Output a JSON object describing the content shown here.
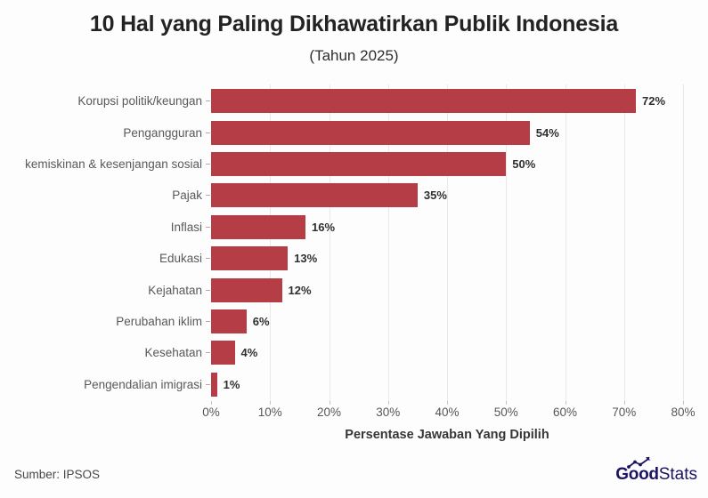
{
  "header": {
    "title": "10 Hal yang Paling Dikhawatirkan Publik Indonesia",
    "subtitle": "(Tahun 2025)"
  },
  "chart_data": {
    "type": "bar",
    "orientation": "horizontal",
    "title": "10 Hal yang Paling Dikhawatirkan Publik Indonesia",
    "subtitle": "(Tahun 2025)",
    "categories": [
      "Korupsi politik/keungan",
      "Pengangguran",
      "kemiskinan & kesenjangan sosial",
      "Pajak",
      "Inflasi",
      "Edukasi",
      "Kejahatan",
      "Perubahan iklim",
      "Kesehatan",
      "Pengendalian imigrasi"
    ],
    "values": [
      72,
      54,
      50,
      35,
      16,
      13,
      12,
      6,
      4,
      1
    ],
    "value_labels": [
      "72%",
      "54%",
      "50%",
      "35%",
      "16%",
      "13%",
      "12%",
      "6%",
      "4%",
      "1%"
    ],
    "xlabel": "Persentase Jawaban Yang Dipilih",
    "ylabel": "",
    "xlim": [
      0,
      80
    ],
    "x_ticks": [
      "0%",
      "10%",
      "20%",
      "30%",
      "40%",
      "50%",
      "60%",
      "70%",
      "80%"
    ],
    "grid": "vertical",
    "legend": "none",
    "bar_color": "#b43d46",
    "gridline_color": "#e9e9e9"
  },
  "footer": {
    "source": "Sumber: IPSOS",
    "logo": {
      "good": "Good",
      "stats": "Stats",
      "color": "#1b1464"
    }
  }
}
